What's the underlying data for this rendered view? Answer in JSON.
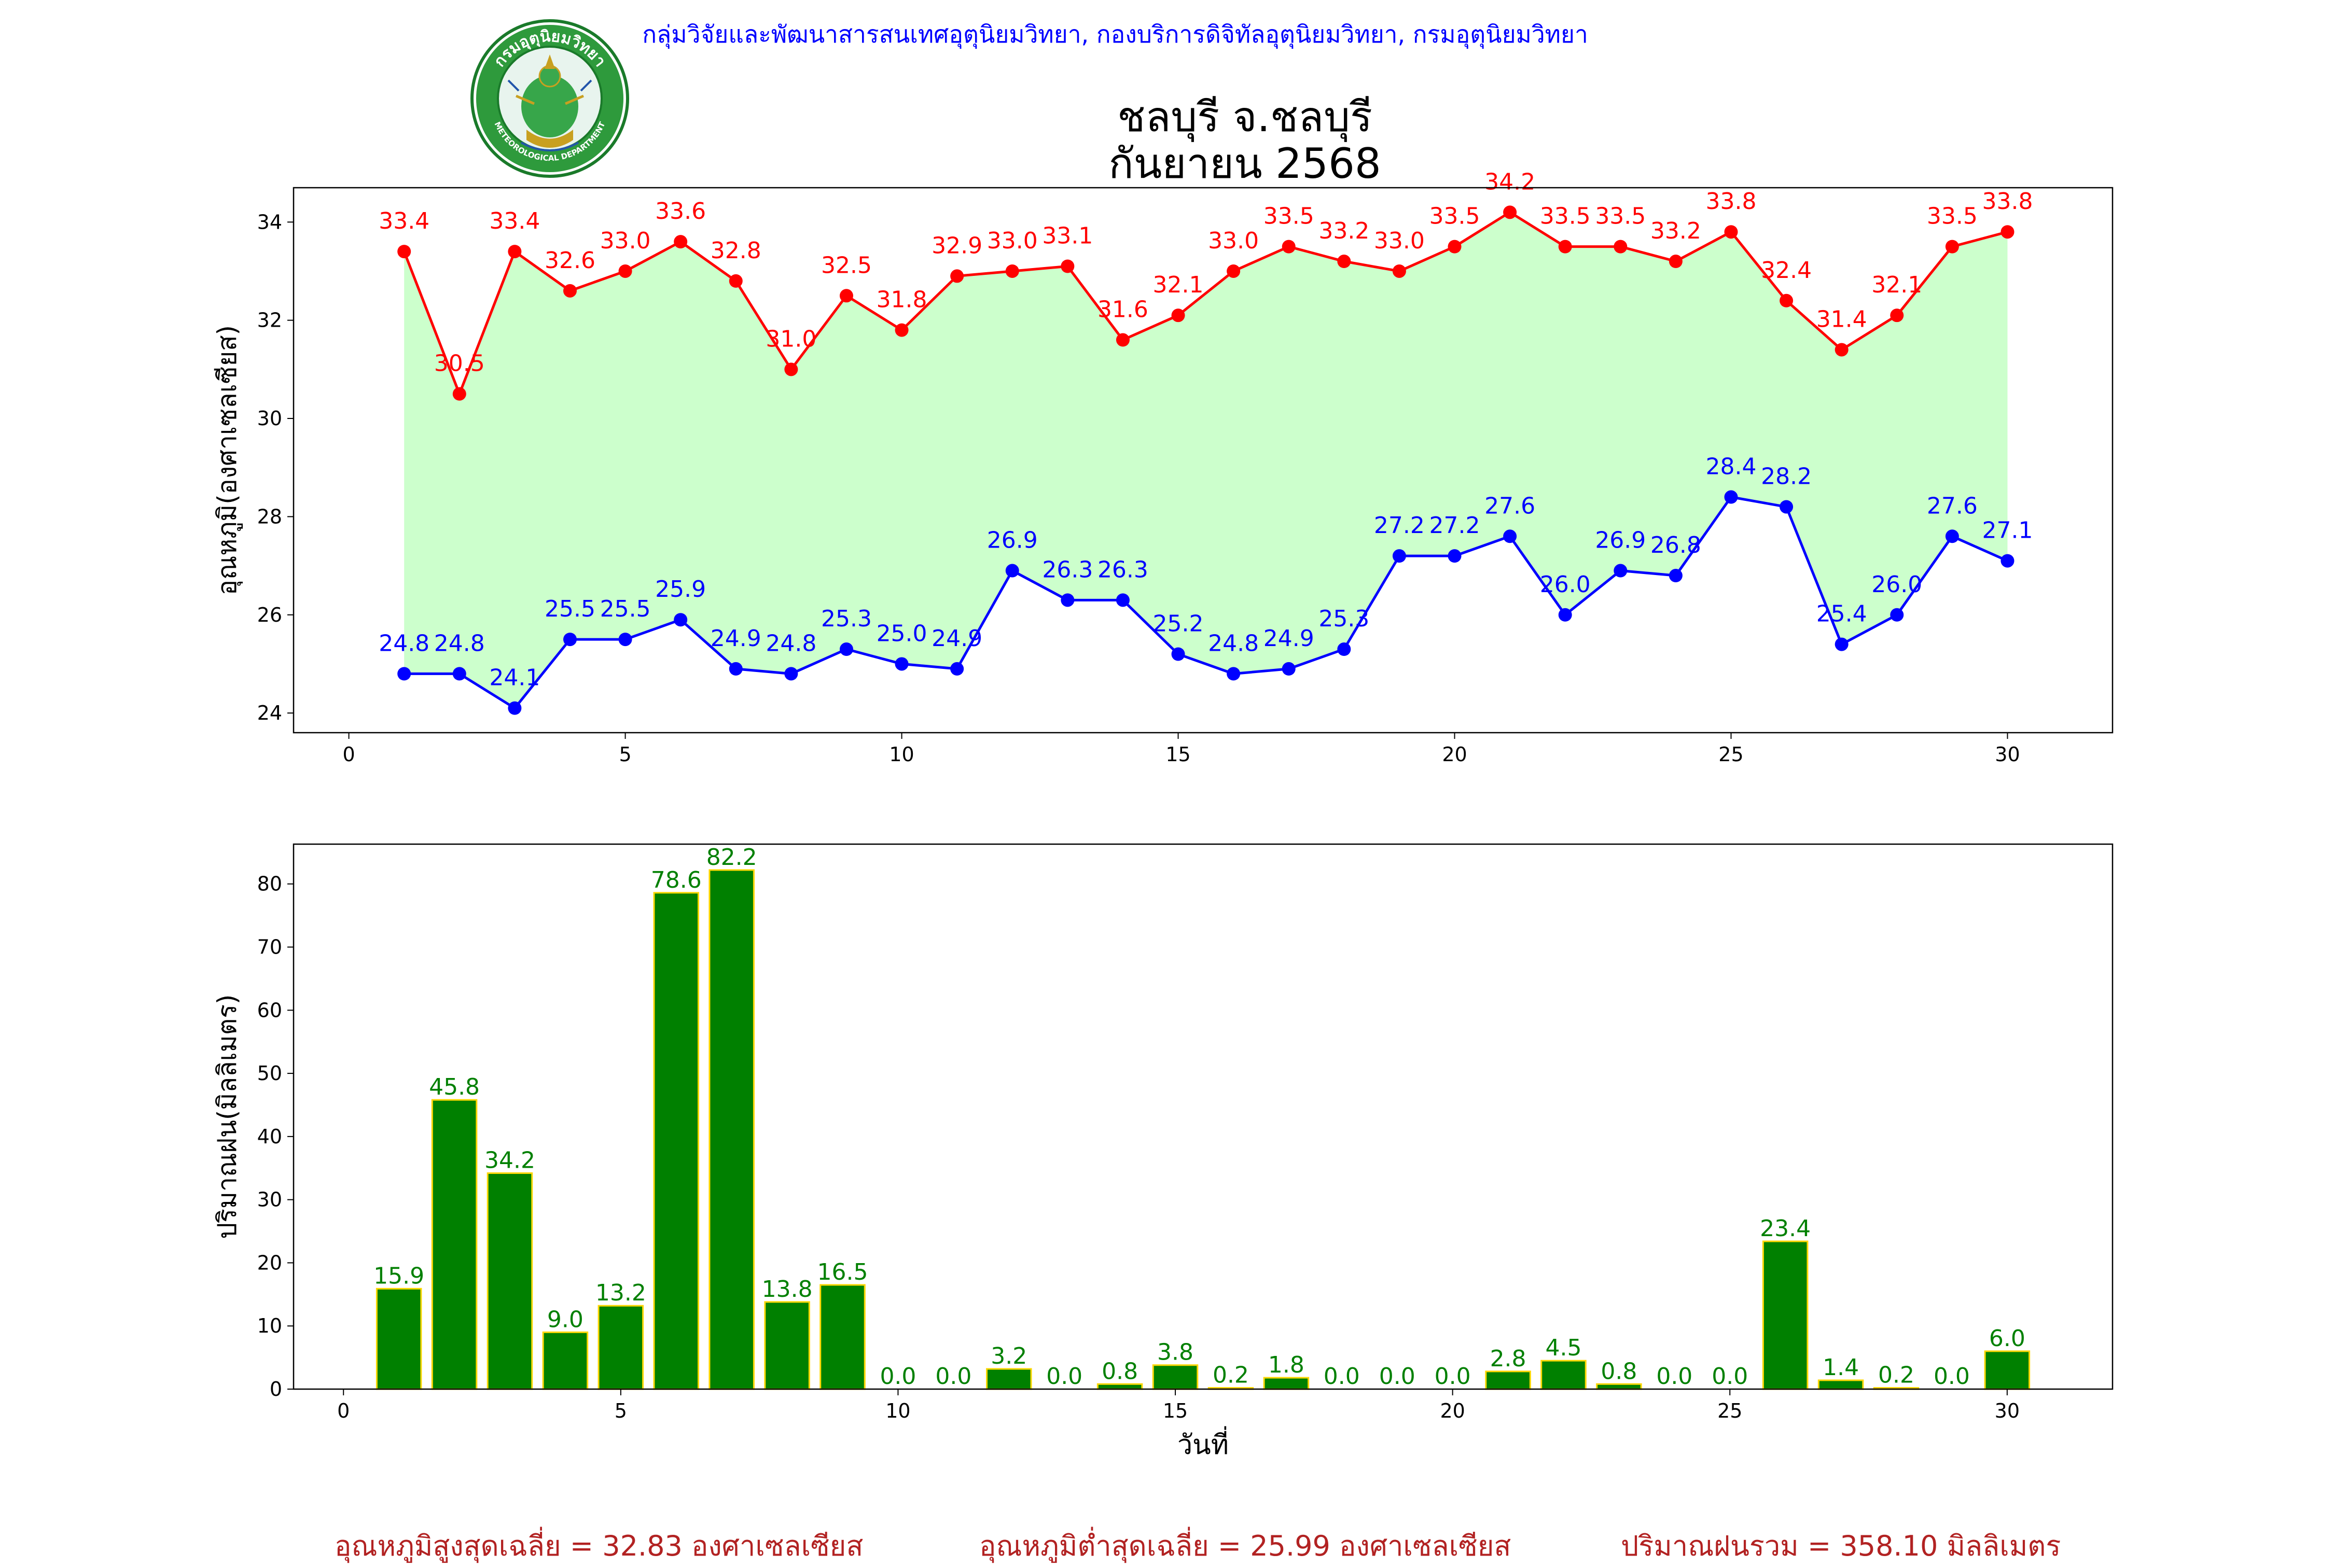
{
  "header": {
    "department": "กลุ่มวิจัยและพัฒนาสารสนเทศอุตุนิยมวิทยา, กองบริการดิจิทัลอุตุนิยมวิทยา, กรมอุตุนิยมวิทยา",
    "title_line1": "ชลบุรี จ.ชลบุรี",
    "title_line2": "กันยายน 2568",
    "logo_text_top": "กรมอุตุนิยมวิทยา",
    "logo_text_bottom": "METEOROLOGICAL DEPARTMENT"
  },
  "footer": {
    "avg_max": "อุณหภูมิสูงสุดเฉลี่ย = 32.83 องศาเซลเซียส",
    "avg_min": "อุณหภูมิต่ำสุดเฉลี่ย = 25.99 องศาเซลเซียส",
    "total_rain": "ปริมาณฝนรวม = 358.10 มิลลิเมตร"
  },
  "colors": {
    "max_line": "#ff0000",
    "min_line": "#0000ff",
    "fill": "#ccffcc",
    "bar": "#008000",
    "bar_edge": "#ffd700",
    "bar_label": "#008000"
  },
  "chart_data": [
    {
      "type": "line",
      "ylabel": "อุณหภูมิ(องศาเซลเซียส)",
      "xlabel": "",
      "x": [
        1,
        2,
        3,
        4,
        5,
        6,
        7,
        8,
        9,
        10,
        11,
        12,
        13,
        14,
        15,
        16,
        17,
        18,
        19,
        20,
        21,
        22,
        23,
        24,
        25,
        26,
        27,
        28,
        29,
        30
      ],
      "series": [
        {
          "values": [
            33.4,
            30.5,
            33.4,
            32.6,
            33.0,
            33.6,
            32.8,
            31.0,
            32.5,
            31.8,
            32.9,
            33.0,
            33.1,
            31.6,
            32.1,
            33.0,
            33.5,
            33.2,
            33.0,
            33.5,
            34.2,
            33.5,
            33.5,
            33.2,
            33.8,
            32.4,
            31.4,
            32.1,
            33.5,
            33.8
          ]
        },
        {
          "values": [
            24.8,
            24.8,
            24.1,
            25.5,
            25.5,
            25.9,
            24.9,
            24.8,
            25.3,
            25.0,
            24.9,
            26.9,
            26.3,
            26.3,
            25.2,
            24.8,
            24.9,
            25.3,
            27.2,
            27.2,
            27.6,
            26.0,
            26.9,
            26.8,
            28.4,
            28.2,
            25.4,
            26.0,
            27.6,
            27.1
          ]
        }
      ],
      "xlim": [
        -1,
        31.9
      ],
      "ylim": [
        23.6,
        34.7
      ],
      "xticks": [
        0,
        5,
        10,
        15,
        20,
        25,
        30
      ],
      "yticks": [
        24,
        26,
        28,
        30,
        32,
        34
      ],
      "grid": false
    },
    {
      "type": "bar",
      "ylabel": "ปริมาณฝน(มิลลิเมตร)",
      "xlabel": "วันที่",
      "x": [
        1,
        2,
        3,
        4,
        5,
        6,
        7,
        8,
        9,
        10,
        11,
        12,
        13,
        14,
        15,
        16,
        17,
        18,
        19,
        20,
        21,
        22,
        23,
        24,
        25,
        26,
        27,
        28,
        29,
        30
      ],
      "values": [
        15.9,
        45.8,
        34.2,
        9.0,
        13.2,
        78.6,
        82.2,
        13.8,
        16.5,
        0.0,
        0.0,
        3.2,
        0.0,
        0.8,
        3.8,
        0.2,
        1.8,
        0.0,
        0.0,
        0.0,
        2.8,
        4.5,
        0.8,
        0.0,
        0.0,
        23.4,
        1.4,
        0.2,
        0.0,
        6.0
      ],
      "xlim": [
        -0.9,
        31.9
      ],
      "ylim": [
        0,
        86.3
      ],
      "xticks": [
        0,
        5,
        10,
        15,
        20,
        25,
        30
      ],
      "yticks": [
        0,
        10,
        20,
        30,
        40,
        50,
        60,
        70,
        80
      ],
      "grid": false
    }
  ]
}
